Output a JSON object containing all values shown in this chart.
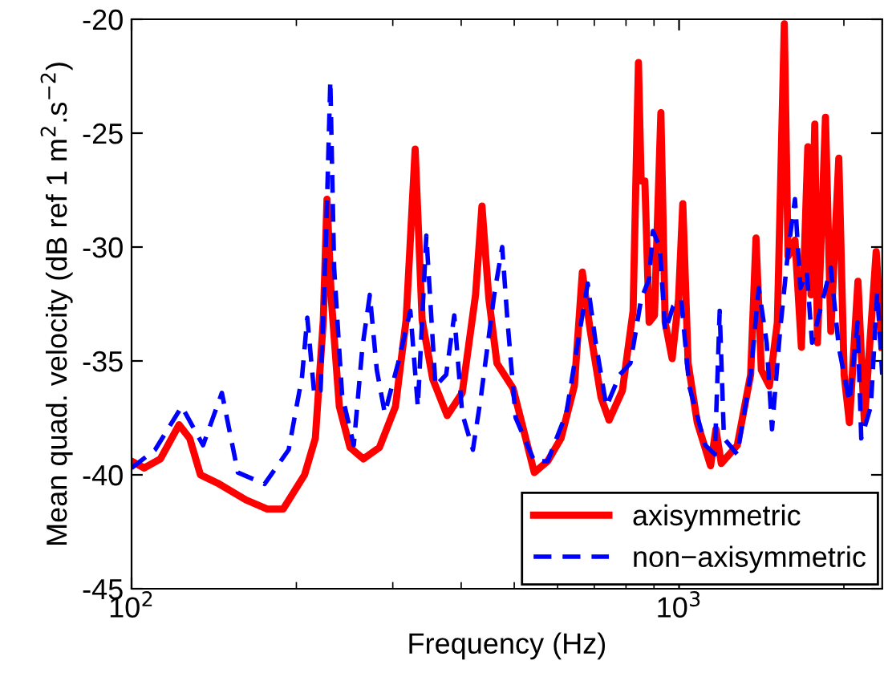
{
  "chart_data": {
    "type": "line",
    "xlabel": "Frequency (Hz)",
    "ylabel": "Mean quad. velocity (dB ref 1 m$^{2}$.s$^{−2}$)",
    "log": "x",
    "xlim": [
      100,
      2350
    ],
    "ylim": [
      -45,
      -20
    ],
    "xticks": [
      {
        "value": 100,
        "label": "10$^{2}$"
      },
      {
        "value": 1000,
        "label": "10$^{3}$"
      }
    ],
    "yticks": [
      -45,
      -40,
      -35,
      -30,
      -25,
      -20
    ],
    "grid": false,
    "legend": "bottom right",
    "marker": "none",
    "series": [
      {
        "name": "axisymmetric",
        "color": "#ff0000",
        "line_style": "solid",
        "x": [
          100,
          105.5,
          112.9,
          122.1,
          127.7,
          133.6,
          144.5,
          161.8,
          176.9,
          189.2,
          207,
          216.6,
          224,
          227.5,
          231.7,
          239.6,
          250.6,
          265.1,
          283.6,
          303.4,
          317.3,
          329.6,
          339.4,
          354.9,
          377.2,
          401.7,
          424.9,
          436.5,
          449.5,
          464.9,
          497.5,
          544,
          575.4,
          608.6,
          643.8,
          665.8,
          688.6,
          720.3,
          745,
          788,
          824.2,
          843,
          852.4,
          866,
          881.7,
          901.7,
          926.4,
          943.2,
          971.2,
          997.7,
          1015.8,
          1038.9,
          1079.4,
          1141.7,
          1167.6,
          1194.3,
          1277.5,
          1351.3,
          1382,
          1413.3,
          1462,
          1512,
          1556.8,
          1581.4,
          1628.3,
          1672.8,
          1718.5,
          1742,
          1769.6,
          1789.7,
          1851,
          1893,
          1957.7,
          2002,
          2047,
          2122,
          2180,
          2291,
          2350
        ],
        "values": [
          -39.4,
          -39.7,
          -39.3,
          -37.8,
          -38.4,
          -40,
          -40.4,
          -41.1,
          -41.5,
          -41.5,
          -40,
          -38.4,
          -33.2,
          -27.9,
          -32.3,
          -37,
          -38.8,
          -39.3,
          -38.8,
          -37,
          -33.2,
          -25.7,
          -33.2,
          -35.8,
          -37.4,
          -36.4,
          -32.1,
          -28.2,
          -32.3,
          -35.1,
          -36.2,
          -39.9,
          -39.4,
          -38.4,
          -36.1,
          -31.1,
          -33.7,
          -36.6,
          -37.6,
          -36.3,
          -32.8,
          -21.9,
          -27.1,
          -27.1,
          -33.3,
          -33,
          -24.1,
          -33.3,
          -34.9,
          -32.3,
          -28.1,
          -35.1,
          -37.7,
          -39.6,
          -38,
          -39.5,
          -38.7,
          -35.6,
          -29.6,
          -35.4,
          -36.1,
          -33.3,
          -20.2,
          -30.4,
          -29.7,
          -34.4,
          -25.6,
          -32.1,
          -24.6,
          -34.2,
          -24.3,
          -33.7,
          -26.1,
          -35.6,
          -37.7,
          -31.5,
          -37.7,
          -30.2,
          -34.4
        ]
      },
      {
        "name": "non−axisymmetric",
        "color": "#0000ff",
        "line_style": "dashed",
        "x": [
          100,
          110.4,
          123.5,
          135.1,
          146.2,
          156.4,
          175,
          193.6,
          204.8,
          209.4,
          215.7,
          221.4,
          226.5,
          230.7,
          234.4,
          242.4,
          254.6,
          264,
          272.4,
          280.5,
          290.1,
          306.7,
          323,
          333.3,
          345.5,
          359,
          375.5,
          388.5,
          401.7,
          420.2,
          434.5,
          459.6,
          475.3,
          486.2,
          503,
          544,
          575.4,
          622.4,
          658.4,
          681,
          704.3,
          736.7,
          779.3,
          815,
          852.4,
          881.7,
          895.8,
          922.4,
          943.2,
          975.6,
          1009,
          1043.5,
          1116.2,
          1162.4,
          1186.3,
          1207.8,
          1277.5,
          1351.3,
          1398,
          1445.4,
          1478.3,
          1529,
          1581.4,
          1628.3,
          1665.4,
          1710.9,
          1749.7,
          1830.6,
          1893,
          1957.7,
          2047,
          2118,
          2151.6,
          2240,
          2301,
          2350
        ],
        "values": [
          -39.7,
          -38.9,
          -37,
          -38.7,
          -36.4,
          -39.9,
          -40.4,
          -38.9,
          -35.7,
          -33.1,
          -36.5,
          -36.3,
          -29.7,
          -22.7,
          -30.9,
          -36.5,
          -38.7,
          -34.4,
          -32.1,
          -35.4,
          -37.3,
          -35.1,
          -32.8,
          -37,
          -29.5,
          -36.1,
          -35.6,
          -33,
          -37.3,
          -38.9,
          -36.6,
          -32.1,
          -30,
          -33.3,
          -37.5,
          -39.4,
          -39.4,
          -37.3,
          -33.7,
          -31.6,
          -34.2,
          -37,
          -35.6,
          -35.1,
          -32.3,
          -31.4,
          -29.3,
          -30,
          -33.7,
          -32.6,
          -32.3,
          -36.1,
          -38.7,
          -39.1,
          -32.8,
          -38.4,
          -39.1,
          -35.6,
          -31.8,
          -34.2,
          -38,
          -33.7,
          -30.2,
          -27.9,
          -31.8,
          -31.1,
          -34.2,
          -32.3,
          -30.9,
          -34.4,
          -36.8,
          -33.3,
          -38.4,
          -37,
          -32,
          -35.6
        ]
      }
    ]
  }
}
